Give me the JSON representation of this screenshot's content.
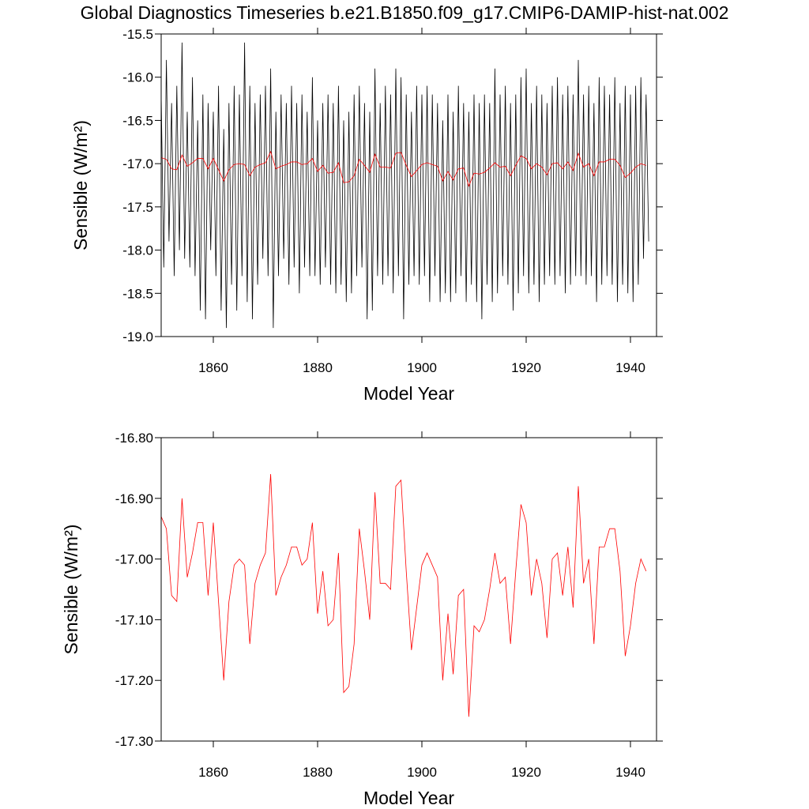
{
  "chart_data": [
    {
      "type": "line",
      "title": "Global Diagnostics Timeseries b.e21.B1850.f09_g17.CMIP6-DAMIP-hist-nat.002",
      "x_label": "Model Year",
      "y_label": "Sensible (W/m²)",
      "xlim": [
        1850,
        1945
      ],
      "xticks": [
        1860,
        1880,
        1900,
        1920,
        1940
      ],
      "ylim": [
        -19.0,
        -15.5
      ],
      "yticks": [
        {
          "value": -19.0,
          "label": "-19.0"
        },
        -18.5,
        {
          "value": -18.0,
          "label": "-18.0"
        },
        -17.5,
        {
          "value": -17.0,
          "label": "-17.0"
        },
        -16.5,
        {
          "value": -16.0,
          "label": "-16.0"
        },
        -15.5
      ],
      "series": [
        {
          "color": "#000000",
          "x": [
            1850,
            1850.5,
            1851,
            1851.5,
            1852,
            1852.5,
            1853,
            1853.5,
            1854,
            1854.5,
            1855,
            1855.5,
            1856,
            1856.5,
            1857,
            1857.5,
            1858,
            1858.5,
            1859,
            1859.5,
            1860,
            1860.5,
            1861,
            1861.5,
            1862,
            1862.5,
            1863,
            1863.5,
            1864,
            1864.5,
            1865,
            1865.5,
            1866,
            1866.5,
            1867,
            1867.5,
            1868,
            1868.5,
            1869,
            1869.5,
            1870,
            1870.5,
            1871,
            1871.5,
            1872,
            1872.5,
            1873,
            1873.5,
            1874,
            1874.5,
            1875,
            1875.5,
            1876,
            1876.5,
            1877,
            1877.5,
            1878,
            1878.5,
            1879,
            1879.5,
            1880,
            1880.5,
            1881,
            1881.5,
            1882,
            1882.5,
            1883,
            1883.5,
            1884,
            1884.5,
            1885,
            1885.5,
            1886,
            1886.5,
            1887,
            1887.5,
            1888,
            1888.5,
            1889,
            1889.5,
            1890,
            1890.5,
            1891,
            1891.5,
            1892,
            1892.5,
            1893,
            1893.5,
            1894,
            1894.5,
            1895,
            1895.5,
            1896,
            1896.5,
            1897,
            1897.5,
            1898,
            1898.5,
            1899,
            1899.5,
            1900,
            1900.5,
            1901,
            1901.5,
            1902,
            1902.5,
            1903,
            1903.5,
            1904,
            1904.5,
            1905,
            1905.5,
            1906,
            1906.5,
            1907,
            1907.5,
            1908,
            1908.5,
            1909,
            1909.5,
            1910,
            1910.5,
            1911,
            1911.5,
            1912,
            1912.5,
            1913,
            1913.5,
            1914,
            1914.5,
            1915,
            1915.5,
            1916,
            1916.5,
            1917,
            1917.5,
            1918,
            1918.5,
            1919,
            1919.5,
            1920,
            1920.5,
            1921,
            1921.5,
            1922,
            1922.5,
            1923,
            1923.5,
            1924,
            1924.5,
            1925,
            1925.5,
            1926,
            1926.5,
            1927,
            1927.5,
            1928,
            1928.5,
            1929,
            1929.5,
            1930,
            1930.5,
            1931,
            1931.5,
            1932,
            1932.5,
            1933,
            1933.5,
            1934,
            1934.5,
            1935,
            1935.5,
            1936,
            1936.5,
            1937,
            1937.5,
            1938,
            1938.5,
            1939,
            1939.5,
            1940,
            1940.5,
            1941,
            1941.5,
            1942,
            1942.5,
            1943,
            1943.5
          ],
          "values": [
            -16.2,
            -18.2,
            -15.8,
            -17.9,
            -16.3,
            -18.3,
            -16.1,
            -18.0,
            -15.6,
            -18.1,
            -16.4,
            -18.2,
            -16.0,
            -18.3,
            -16.5,
            -18.7,
            -16.2,
            -18.8,
            -16.3,
            -18.0,
            -16.4,
            -18.3,
            -16.1,
            -18.7,
            -16.6,
            -18.9,
            -16.3,
            -18.4,
            -16.1,
            -18.7,
            -16.2,
            -18.3,
            -15.6,
            -18.6,
            -16.1,
            -18.8,
            -16.3,
            -18.4,
            -16.2,
            -18.1,
            -16.1,
            -18.3,
            -15.9,
            -18.9,
            -16.4,
            -18.3,
            -16.2,
            -18.1,
            -16.3,
            -18.4,
            -16.1,
            -18.2,
            -16.3,
            -18.5,
            -16.2,
            -18.2,
            -16.4,
            -18.3,
            -16.0,
            -18.3,
            -16.5,
            -18.4,
            -16.3,
            -18.2,
            -16.2,
            -18.4,
            -16.3,
            -18.5,
            -16.1,
            -18.4,
            -16.5,
            -18.6,
            -16.4,
            -18.5,
            -16.2,
            -18.3,
            -16.1,
            -18.2,
            -16.3,
            -18.8,
            -16.4,
            -18.7,
            -15.9,
            -18.3,
            -16.3,
            -18.4,
            -16.1,
            -18.3,
            -16.2,
            -18.5,
            -15.9,
            -18.3,
            -16.0,
            -18.8,
            -16.2,
            -18.4,
            -16.4,
            -18.3,
            -16.1,
            -18.4,
            -16.2,
            -18.3,
            -16.1,
            -18.6,
            -16.2,
            -18.3,
            -16.3,
            -18.6,
            -16.5,
            -18.5,
            -16.2,
            -18.6,
            -16.4,
            -18.5,
            -16.1,
            -18.3,
            -16.3,
            -18.6,
            -16.4,
            -18.4,
            -16.2,
            -18.6,
            -16.3,
            -18.8,
            -16.2,
            -18.4,
            -16.3,
            -18.6,
            -15.9,
            -18.5,
            -16.2,
            -18.3,
            -16.1,
            -18.4,
            -16.3,
            -18.7,
            -16.2,
            -18.5,
            -16.0,
            -18.3,
            -15.9,
            -18.5,
            -16.3,
            -18.4,
            -16.1,
            -18.6,
            -16.2,
            -18.4,
            -16.3,
            -18.3,
            -16.1,
            -18.4,
            -16.0,
            -18.3,
            -16.2,
            -18.5,
            -16.1,
            -18.4,
            -16.2,
            -18.3,
            -15.8,
            -18.3,
            -16.2,
            -18.4,
            -16.1,
            -18.3,
            -16.3,
            -18.6,
            -16.0,
            -18.4,
            -16.1,
            -18.3,
            -16.2,
            -18.4,
            -16.0,
            -18.6,
            -16.3,
            -18.4,
            -16.1,
            -18.5,
            -16.2,
            -18.6,
            -16.1,
            -18.4,
            -16.0,
            -18.1,
            -16.2,
            -17.9
          ]
        },
        {
          "color": "#ff0000",
          "x": [
            1850,
            1851,
            1852,
            1853,
            1854,
            1855,
            1856,
            1857,
            1858,
            1859,
            1860,
            1861,
            1862,
            1863,
            1864,
            1865,
            1866,
            1867,
            1868,
            1869,
            1870,
            1871,
            1872,
            1873,
            1874,
            1875,
            1876,
            1877,
            1878,
            1879,
            1880,
            1881,
            1882,
            1883,
            1884,
            1885,
            1886,
            1887,
            1888,
            1889,
            1890,
            1891,
            1892,
            1893,
            1894,
            1895,
            1896,
            1897,
            1898,
            1899,
            1900,
            1901,
            1902,
            1903,
            1904,
            1905,
            1906,
            1907,
            1908,
            1909,
            1910,
            1911,
            1912,
            1913,
            1914,
            1915,
            1916,
            1917,
            1918,
            1919,
            1920,
            1921,
            1922,
            1923,
            1924,
            1925,
            1926,
            1927,
            1928,
            1929,
            1930,
            1931,
            1932,
            1933,
            1934,
            1935,
            1936,
            1937,
            1938,
            1939,
            1940,
            1941,
            1942,
            1943
          ],
          "values": [
            -16.93,
            -16.95,
            -17.06,
            -17.07,
            -16.9,
            -17.03,
            -16.99,
            -16.94,
            -16.94,
            -17.06,
            -16.94,
            -17.07,
            -17.2,
            -17.07,
            -17.01,
            -17.0,
            -17.01,
            -17.14,
            -17.04,
            -17.01,
            -16.99,
            -16.86,
            -17.06,
            -17.03,
            -17.01,
            -16.98,
            -16.98,
            -17.01,
            -17.0,
            -16.94,
            -17.09,
            -17.02,
            -17.11,
            -17.1,
            -16.99,
            -17.22,
            -17.21,
            -17.14,
            -16.95,
            -17.02,
            -17.1,
            -16.89,
            -17.04,
            -17.04,
            -17.05,
            -16.88,
            -16.87,
            -17.02,
            -17.15,
            -17.08,
            -17.01,
            -16.99,
            -17.01,
            -17.03,
            -17.2,
            -17.09,
            -17.19,
            -17.06,
            -17.05,
            -17.26,
            -17.11,
            -17.12,
            -17.1,
            -17.05,
            -16.99,
            -17.04,
            -17.03,
            -17.14,
            -17.02,
            -16.91,
            -16.94,
            -17.06,
            -17.0,
            -17.04,
            -17.13,
            -17.0,
            -16.99,
            -17.06,
            -16.98,
            -17.08,
            -16.88,
            -17.04,
            -17.0,
            -17.14,
            -16.98,
            -16.98,
            -16.95,
            -16.95,
            -17.02,
            -17.16,
            -17.11,
            -17.04,
            -17.0,
            -17.02
          ]
        }
      ]
    },
    {
      "type": "line",
      "x_label": "Model Year",
      "y_label": "Sensible (W/m²)",
      "xlim": [
        1850,
        1945
      ],
      "xticks": [
        1860,
        1880,
        1900,
        1920,
        1940
      ],
      "ylim": [
        -17.3,
        -16.8
      ],
      "yticks": [
        {
          "value": -17.3,
          "label": "-17.30"
        },
        {
          "value": -17.2,
          "label": "-17.20"
        },
        {
          "value": -17.1,
          "label": "-17.10"
        },
        {
          "value": -17.0,
          "label": "-17.00"
        },
        {
          "value": -16.9,
          "label": "-16.90"
        },
        {
          "value": -16.8,
          "label": "-16.80"
        }
      ],
      "series": [
        {
          "color": "#ff0000",
          "x": [
            1850,
            1851,
            1852,
            1853,
            1854,
            1855,
            1856,
            1857,
            1858,
            1859,
            1860,
            1861,
            1862,
            1863,
            1864,
            1865,
            1866,
            1867,
            1868,
            1869,
            1870,
            1871,
            1872,
            1873,
            1874,
            1875,
            1876,
            1877,
            1878,
            1879,
            1880,
            1881,
            1882,
            1883,
            1884,
            1885,
            1886,
            1887,
            1888,
            1889,
            1890,
            1891,
            1892,
            1893,
            1894,
            1895,
            1896,
            1897,
            1898,
            1899,
            1900,
            1901,
            1902,
            1903,
            1904,
            1905,
            1906,
            1907,
            1908,
            1909,
            1910,
            1911,
            1912,
            1913,
            1914,
            1915,
            1916,
            1917,
            1918,
            1919,
            1920,
            1921,
            1922,
            1923,
            1924,
            1925,
            1926,
            1927,
            1928,
            1929,
            1930,
            1931,
            1932,
            1933,
            1934,
            1935,
            1936,
            1937,
            1938,
            1939,
            1940,
            1941,
            1942,
            1943
          ],
          "values": [
            -16.93,
            -16.95,
            -17.06,
            -17.07,
            -16.9,
            -17.03,
            -16.99,
            -16.94,
            -16.94,
            -17.06,
            -16.94,
            -17.07,
            -17.2,
            -17.07,
            -17.01,
            -17.0,
            -17.01,
            -17.14,
            -17.04,
            -17.01,
            -16.99,
            -16.86,
            -17.06,
            -17.03,
            -17.01,
            -16.98,
            -16.98,
            -17.01,
            -17.0,
            -16.94,
            -17.09,
            -17.02,
            -17.11,
            -17.1,
            -16.99,
            -17.22,
            -17.21,
            -17.14,
            -16.95,
            -17.02,
            -17.1,
            -16.89,
            -17.04,
            -17.04,
            -17.05,
            -16.88,
            -16.87,
            -17.02,
            -17.15,
            -17.08,
            -17.01,
            -16.99,
            -17.01,
            -17.03,
            -17.2,
            -17.09,
            -17.19,
            -17.06,
            -17.05,
            -17.26,
            -17.11,
            -17.12,
            -17.1,
            -17.05,
            -16.99,
            -17.04,
            -17.03,
            -17.14,
            -17.02,
            -16.91,
            -16.94,
            -17.06,
            -17.0,
            -17.04,
            -17.13,
            -17.0,
            -16.99,
            -17.06,
            -16.98,
            -17.08,
            -16.88,
            -17.04,
            -17.0,
            -17.14,
            -16.98,
            -16.98,
            -16.95,
            -16.95,
            -17.02,
            -17.16,
            -17.11,
            -17.04,
            -17.0,
            -17.02
          ]
        }
      ]
    }
  ]
}
